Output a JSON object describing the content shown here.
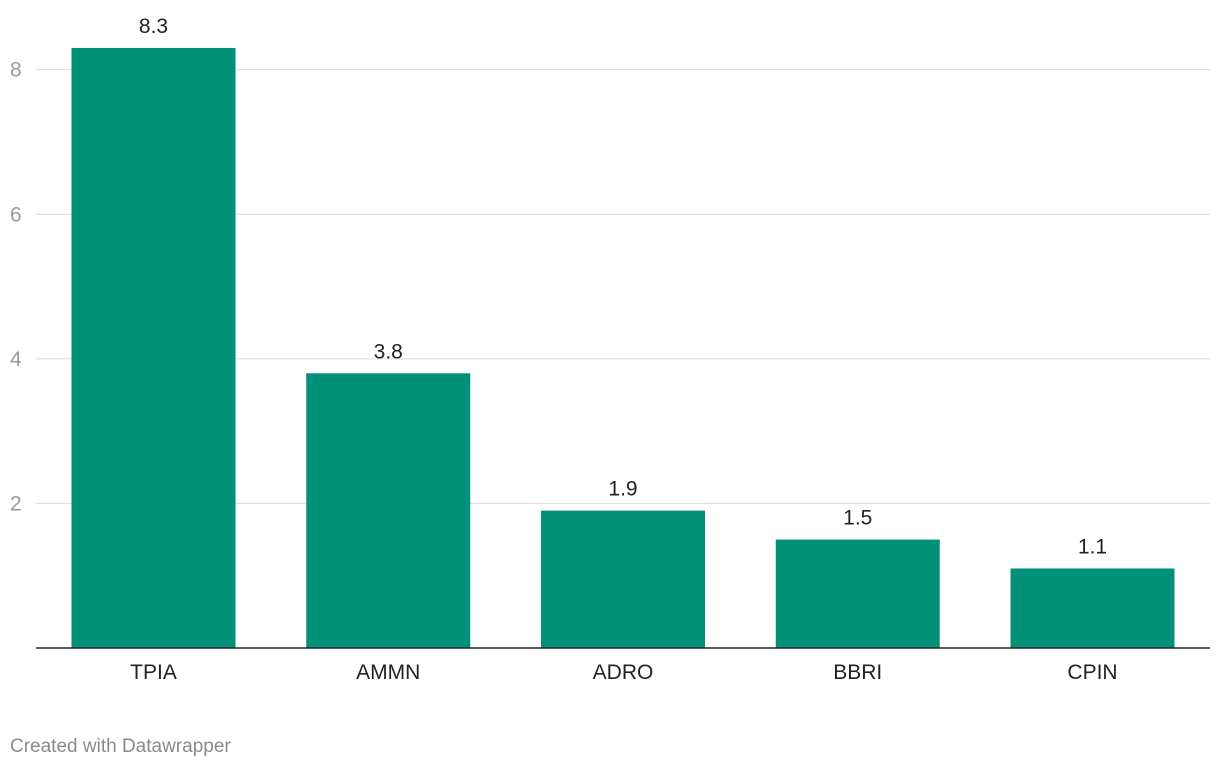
{
  "chart_data": {
    "type": "bar",
    "categories": [
      "TPIA",
      "AMMN",
      "ADRO",
      "BBRI",
      "CPIN"
    ],
    "values": [
      8.3,
      3.8,
      1.9,
      1.5,
      1.1
    ],
    "value_labels": [
      "8.3",
      "3.8",
      "1.9",
      "1.5",
      "1.1"
    ],
    "title": "",
    "xlabel": "",
    "ylabel": "",
    "ylim": [
      0,
      8.3
    ],
    "yticks": [
      2,
      4,
      6,
      8
    ],
    "grid": true,
    "bar_color": "#009178"
  },
  "footer": {
    "credit": "Created with Datawrapper"
  }
}
